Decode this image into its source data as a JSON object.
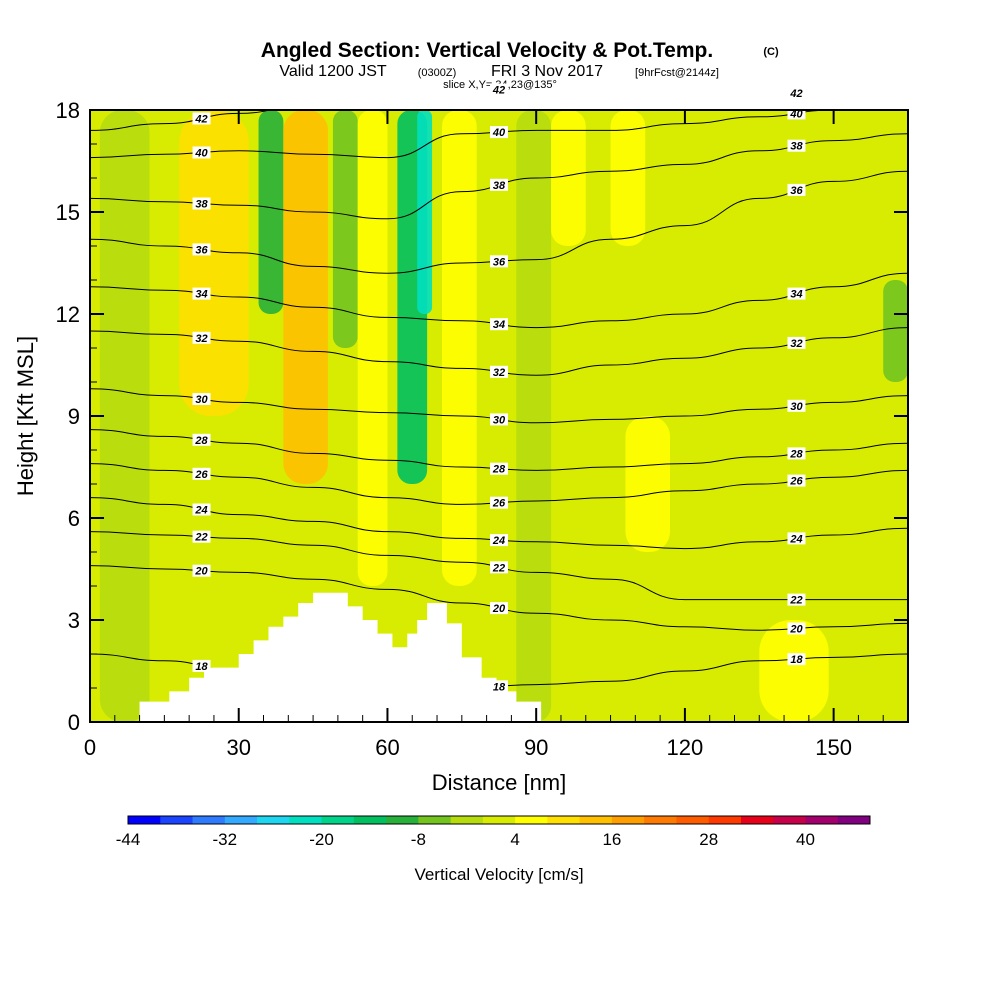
{
  "title": {
    "main": "Angled Section: Vertical Velocity & Pot.Temp.",
    "main_suffix": "(C)",
    "valid_a": "Valid 1200 JST",
    "valid_b": "(0300Z)",
    "valid_c": "FRI 3 Nov 2017",
    "valid_d": "[9hrFcst@2144z]",
    "slice": "slice X,Y= 34,23@135°"
  },
  "chart_data": {
    "type": "heatmap",
    "xlabel": "Distance [nm]",
    "ylabel": "Height [Kft MSL]",
    "xlim": [
      0,
      165
    ],
    "ylim": [
      0,
      18
    ],
    "x_ticks": [
      "0",
      "30",
      "60",
      "90",
      "120",
      "150"
    ],
    "x_tick_values": [
      0,
      30,
      60,
      90,
      120,
      150
    ],
    "y_ticks": [
      "0",
      "3",
      "6",
      "9",
      "12",
      "15",
      "18"
    ],
    "y_tick_values": [
      0,
      3,
      6,
      9,
      12,
      15,
      18
    ],
    "grid": false,
    "terrain": [
      [
        0,
        0
      ],
      [
        10,
        0
      ],
      [
        10,
        0.6
      ],
      [
        16,
        0.6
      ],
      [
        16,
        0.9
      ],
      [
        20,
        0.9
      ],
      [
        20,
        1.3
      ],
      [
        23,
        1.3
      ],
      [
        23,
        1.6
      ],
      [
        30,
        1.6
      ],
      [
        30,
        2
      ],
      [
        33,
        2
      ],
      [
        33,
        2.4
      ],
      [
        36,
        2.4
      ],
      [
        36,
        2.8
      ],
      [
        39,
        2.8
      ],
      [
        39,
        3.1
      ],
      [
        42,
        3.1
      ],
      [
        42,
        3.5
      ],
      [
        45,
        3.5
      ],
      [
        45,
        3.8
      ],
      [
        52,
        3.8
      ],
      [
        52,
        3.4
      ],
      [
        55,
        3.4
      ],
      [
        55,
        3
      ],
      [
        58,
        3
      ],
      [
        58,
        2.6
      ],
      [
        61,
        2.6
      ],
      [
        61,
        2.2
      ],
      [
        64,
        2.2
      ],
      [
        64,
        2.6
      ],
      [
        66,
        2.6
      ],
      [
        66,
        3
      ],
      [
        68,
        3
      ],
      [
        68,
        3.5
      ],
      [
        72,
        3.5
      ],
      [
        72,
        2.9
      ],
      [
        75,
        2.9
      ],
      [
        75,
        1.9
      ],
      [
        79,
        1.9
      ],
      [
        79,
        1.3
      ],
      [
        82,
        1.3
      ],
      [
        82,
        0.9
      ],
      [
        86,
        0.9
      ],
      [
        86,
        0.6
      ],
      [
        91,
        0.6
      ],
      [
        91,
        0
      ],
      [
        165,
        0
      ]
    ],
    "theta_contours": [
      {
        "label": "42",
        "level": 42,
        "heights": [
          17.4,
          17.6,
          17.9,
          18.2,
          18.5,
          18.6,
          18.6,
          18.5,
          18.5,
          18.5,
          18.5,
          18.5
        ]
      },
      {
        "label": "40",
        "level": 40,
        "heights": [
          16.6,
          16.7,
          16.8,
          16.7,
          16.6,
          17.3,
          17.4,
          17.4,
          17.6,
          17.8,
          18.0,
          18.2
        ]
      },
      {
        "label": "38",
        "level": 38,
        "heights": [
          15.4,
          15.3,
          15.2,
          15.0,
          14.8,
          15.6,
          16.0,
          16.2,
          16.4,
          16.8,
          17.1,
          17.3
        ]
      },
      {
        "label": "36",
        "level": 36,
        "heights": [
          14.2,
          14.0,
          13.8,
          13.4,
          13.2,
          13.5,
          13.6,
          14.2,
          14.6,
          15.4,
          15.9,
          16.2
        ]
      },
      {
        "label": "34",
        "level": 34,
        "heights": [
          12.8,
          12.7,
          12.5,
          12.2,
          11.9,
          11.8,
          11.6,
          11.8,
          12.0,
          12.4,
          12.8,
          13.2
        ]
      },
      {
        "label": "32",
        "level": 32,
        "heights": [
          11.5,
          11.4,
          11.2,
          10.9,
          10.6,
          10.4,
          10.2,
          10.5,
          10.7,
          11.0,
          11.3,
          11.6
        ]
      },
      {
        "label": "30",
        "level": 30,
        "heights": [
          9.8,
          9.6,
          9.4,
          9.2,
          9.1,
          9.0,
          8.8,
          8.9,
          9.0,
          9.2,
          9.4,
          9.6
        ]
      },
      {
        "label": "28",
        "level": 28,
        "heights": [
          8.6,
          8.4,
          8.2,
          7.9,
          7.7,
          7.5,
          7.4,
          7.5,
          7.6,
          7.8,
          8.0,
          8.2
        ]
      },
      {
        "label": "26",
        "level": 26,
        "heights": [
          7.6,
          7.4,
          7.2,
          6.9,
          6.6,
          6.4,
          6.5,
          6.6,
          6.8,
          7.0,
          7.2,
          7.4
        ]
      },
      {
        "label": "24",
        "level": 24,
        "heights": [
          6.6,
          6.4,
          6.1,
          5.9,
          5.6,
          5.4,
          5.3,
          5.2,
          5.1,
          5.3,
          5.5,
          5.7
        ]
      },
      {
        "label": "22",
        "level": 22,
        "heights": [
          5.6,
          5.5,
          5.4,
          5.2,
          4.9,
          4.7,
          4.4,
          4.2,
          3.6,
          3.6,
          3.6,
          3.6
        ]
      },
      {
        "label": "20",
        "level": 20,
        "heights": [
          4.6,
          4.5,
          4.4,
          4.2,
          3.9,
          3.5,
          3.2,
          3.0,
          2.8,
          2.7,
          2.8,
          2.9
        ]
      },
      {
        "label": "18",
        "level": 18,
        "heights": [
          2.0,
          1.8,
          1.5,
          1.2,
          1.1,
          1.0,
          1.1,
          1.2,
          1.5,
          1.8,
          1.9,
          2.0
        ]
      }
    ],
    "contour_x": [
      0,
      15,
      30,
      45,
      60,
      75,
      90,
      105,
      120,
      135,
      150,
      165
    ],
    "velocity_bands": [
      {
        "x": [
          2,
          12
        ],
        "y": [
          0,
          18
        ],
        "value": -2
      },
      {
        "x": [
          18,
          32
        ],
        "y": [
          9,
          18
        ],
        "value": 8
      },
      {
        "x": [
          34,
          39
        ],
        "y": [
          12,
          18
        ],
        "value": -10
      },
      {
        "x": [
          39,
          48
        ],
        "y": [
          7,
          18
        ],
        "value": 12
      },
      {
        "x": [
          49,
          54
        ],
        "y": [
          11,
          18
        ],
        "value": -8
      },
      {
        "x": [
          54,
          60
        ],
        "y": [
          4,
          18
        ],
        "value": 6
      },
      {
        "x": [
          62,
          68
        ],
        "y": [
          7,
          18
        ],
        "value": -16
      },
      {
        "x": [
          66,
          69
        ],
        "y": [
          12,
          18
        ],
        "value": -24
      },
      {
        "x": [
          71,
          78
        ],
        "y": [
          4,
          18
        ],
        "value": 6
      },
      {
        "x": [
          86,
          93
        ],
        "y": [
          0,
          18
        ],
        "value": -3
      },
      {
        "x": [
          93,
          100
        ],
        "y": [
          14,
          18
        ],
        "value": 6
      },
      {
        "x": [
          105,
          112
        ],
        "y": [
          14,
          18
        ],
        "value": 4
      },
      {
        "x": [
          108,
          117
        ],
        "y": [
          5,
          9
        ],
        "value": 4
      },
      {
        "x": [
          135,
          149
        ],
        "y": [
          0,
          3
        ],
        "value": 5
      },
      {
        "x": [
          160,
          165
        ],
        "y": [
          10,
          13
        ],
        "value": -6
      }
    ],
    "color_scale": {
      "label": "Vertical Velocity [cm/s]",
      "min": -44,
      "max": 44,
      "step": 4,
      "tick_labels": [
        "-44",
        "-32",
        "-20",
        "-8",
        "4",
        "16",
        "28",
        "40"
      ],
      "tick_values": [
        -44,
        -32,
        -20,
        -8,
        4,
        16,
        28,
        40
      ],
      "colors": [
        "#0000ff",
        "#1a44ff",
        "#2e7bff",
        "#33aaff",
        "#1fd6f0",
        "#00e0c0",
        "#00d48a",
        "#00c060",
        "#27b03a",
        "#73c41f",
        "#b6dc0e",
        "#d7ec00",
        "#ffff00",
        "#ffe000",
        "#ffc000",
        "#ff9e00",
        "#ff7a00",
        "#ff5c00",
        "#ff3a00",
        "#e8001a",
        "#c8004a",
        "#a3006e",
        "#800080"
      ]
    }
  }
}
